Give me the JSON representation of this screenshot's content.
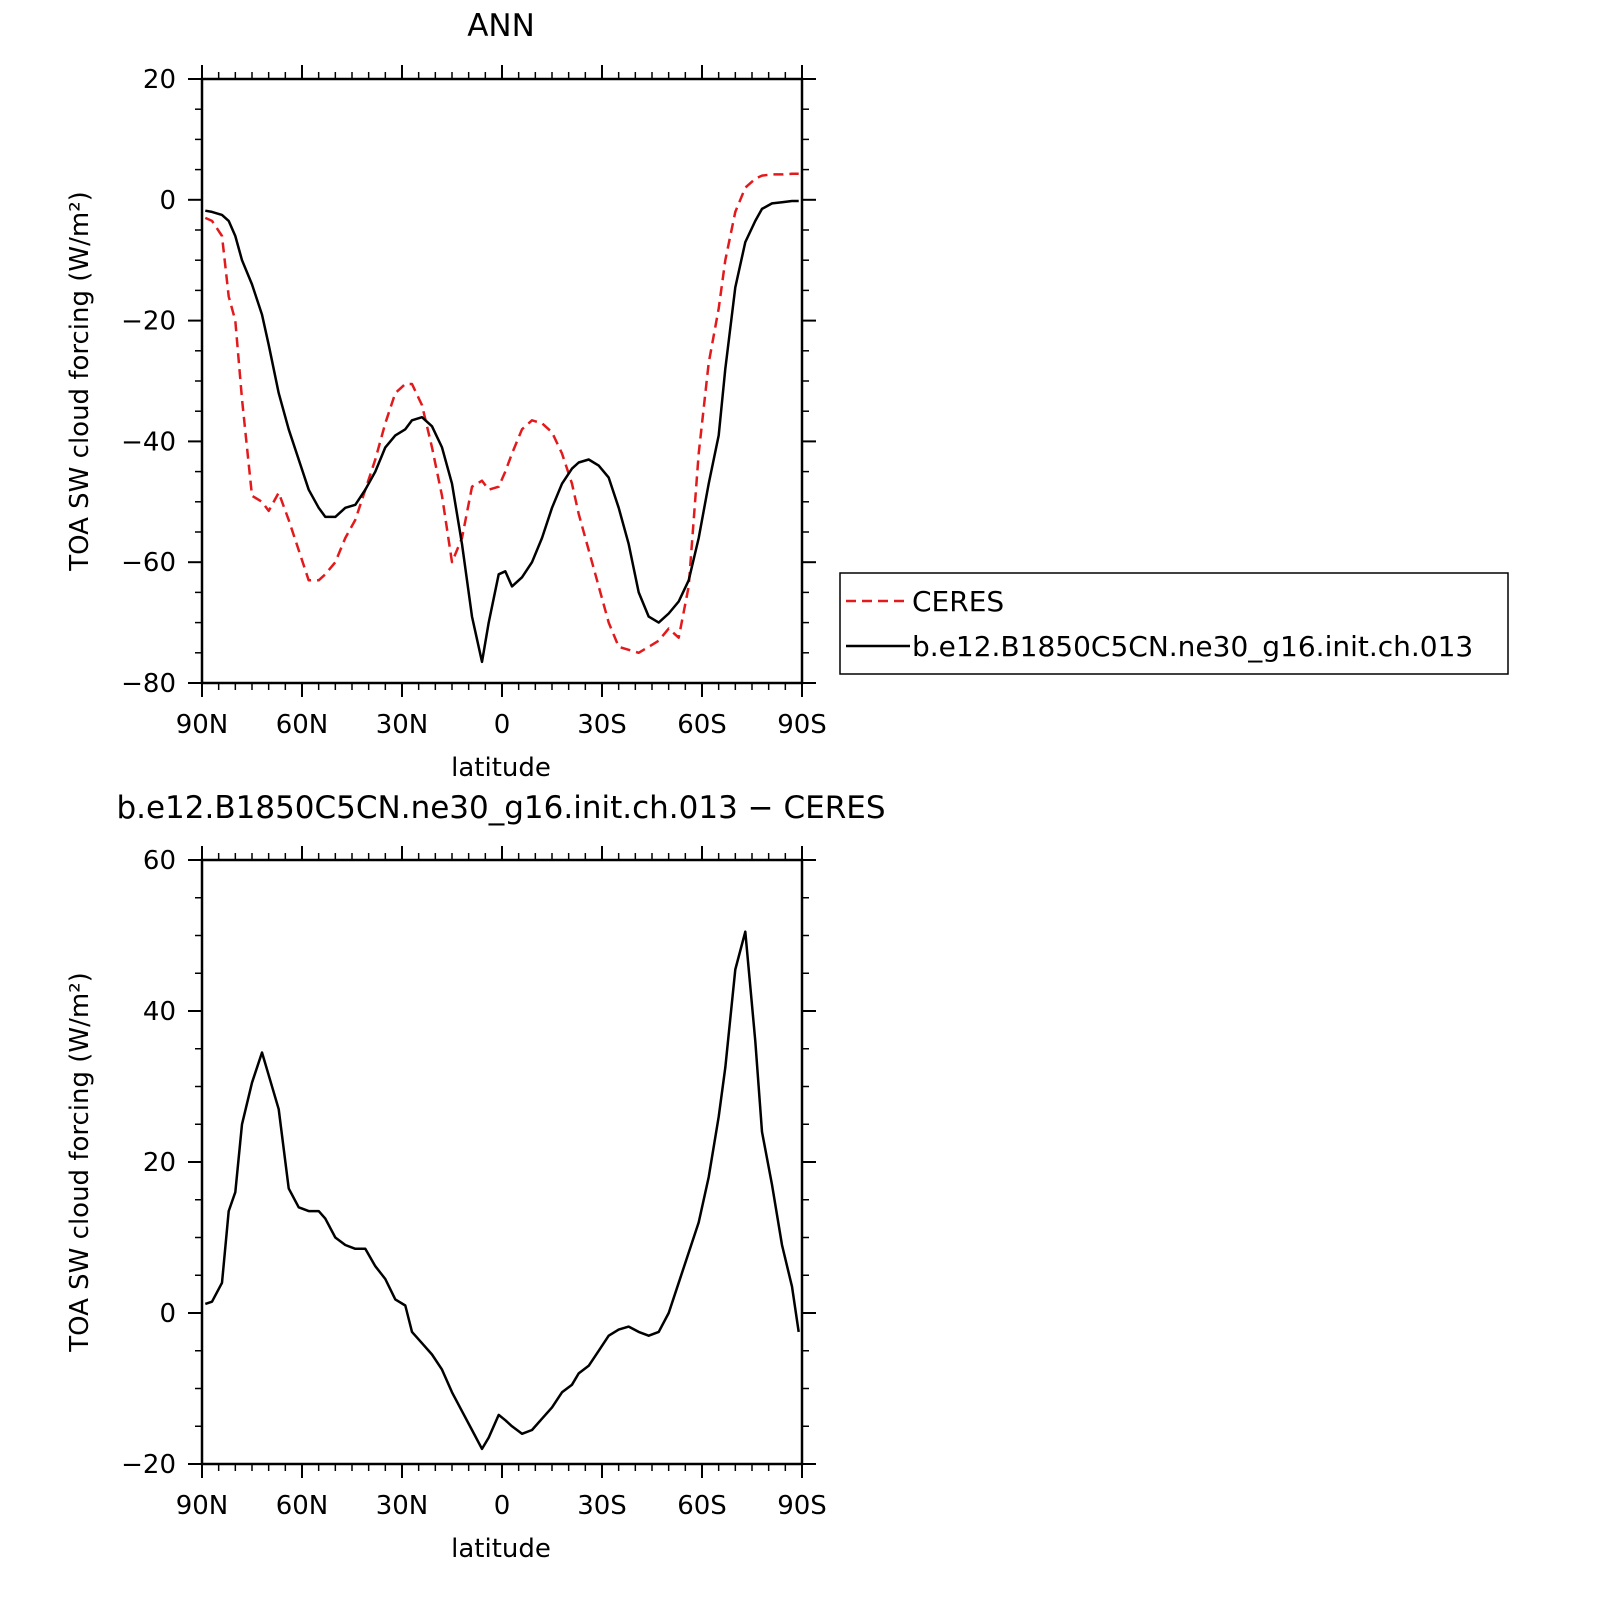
{
  "chart_data": [
    {
      "type": "line",
      "title": "ANN",
      "xlabel": "latitude",
      "ylabel": "TOA SW cloud forcing (W/m²)",
      "xlim": [
        90,
        -90
      ],
      "ylim": [
        -80,
        20
      ],
      "xticks": [
        90,
        60,
        30,
        0,
        -30,
        -60,
        -90
      ],
      "xtick_labels": [
        "90N",
        "60N",
        "30N",
        "0",
        "30S",
        "60S",
        "90S"
      ],
      "yticks": [
        20,
        0,
        -20,
        -40,
        -60,
        -80
      ],
      "ytick_labels": [
        "20",
        "0",
        "−20",
        "−40",
        "−60",
        "−80"
      ],
      "legend_position": "right",
      "x": [
        89,
        87,
        84,
        82,
        80,
        78,
        75,
        72,
        70,
        67,
        64,
        61,
        58,
        55,
        53,
        50,
        47,
        44,
        41,
        38,
        35,
        32,
        29,
        27,
        24,
        21,
        18,
        15,
        12,
        9,
        6,
        4,
        1,
        -1,
        -3,
        -6,
        -9,
        -12,
        -15,
        -18,
        -21,
        -23,
        -26,
        -29,
        -32,
        -35,
        -38,
        -41,
        -44,
        -47,
        -50,
        -53,
        -56,
        -59,
        -62,
        -65,
        -67,
        -70,
        -73,
        -76,
        -78,
        -81,
        -84,
        -87,
        -89
      ],
      "series": [
        {
          "name": "CERES",
          "color": "#e31a1c",
          "dash": true,
          "values": [
            -3,
            -3.5,
            -6,
            -16,
            -20,
            -33,
            -49,
            -50,
            -51.5,
            -48.5,
            -53,
            -58,
            -63,
            -63,
            -62,
            -60,
            -56,
            -53,
            -48,
            -43,
            -37,
            -32,
            -30.5,
            -30.5,
            -34,
            -41,
            -49,
            -60,
            -56,
            -47.5,
            -46.5,
            -48,
            -47.5,
            -45,
            -42,
            -38,
            -36.5,
            -37,
            -38.5,
            -42,
            -47,
            -52,
            -58,
            -64,
            -70,
            -74,
            -74.5,
            -75,
            -74,
            -73,
            -71,
            -72.5,
            -64,
            -42,
            -27,
            -18,
            -10,
            -2,
            2,
            3.5,
            4,
            4.2,
            4.2,
            4.3,
            4.3
          ]
        },
        {
          "name": "b.e12.B1850C5CN.ne30_g16.init.ch.013",
          "color": "#000000",
          "dash": false,
          "values": [
            -1.8,
            -2,
            -2.5,
            -3.5,
            -6,
            -10,
            -14,
            -19,
            -24,
            -32,
            -38,
            -43,
            -48,
            -51,
            -52.5,
            -52.5,
            -51,
            -50.5,
            -48,
            -45,
            -41,
            -39,
            -38,
            -36.5,
            -36,
            -37.5,
            -41,
            -47,
            -57,
            -69,
            -76.5,
            -70,
            -62,
            -61.5,
            -64,
            -62.5,
            -60,
            -56,
            -51,
            -47,
            -44.5,
            -43.5,
            -43,
            -44,
            -46,
            -51,
            -57,
            -65,
            -69,
            -70,
            -68.5,
            -66.5,
            -63,
            -56,
            -47,
            -39,
            -28,
            -14.5,
            -7,
            -3.5,
            -1.5,
            -0.6,
            -0.4,
            -0.2,
            -0.2
          ]
        }
      ]
    },
    {
      "type": "line",
      "title": "b.e12.B1850C5CN.ne30_g16.init.ch.013 − CERES",
      "xlabel": "latitude",
      "ylabel": "TOA SW cloud forcing (W/m²)",
      "xlim": [
        90,
        -90
      ],
      "ylim": [
        -20,
        60
      ],
      "xticks": [
        90,
        60,
        30,
        0,
        -30,
        -60,
        -90
      ],
      "xtick_labels": [
        "90N",
        "60N",
        "30N",
        "0",
        "30S",
        "60S",
        "90S"
      ],
      "yticks": [
        60,
        40,
        20,
        0,
        -20
      ],
      "ytick_labels": [
        "60",
        "40",
        "20",
        "0",
        "−20"
      ],
      "x": [
        89,
        87,
        84,
        82,
        80,
        78,
        75,
        72,
        70,
        67,
        64,
        61,
        58,
        55,
        53,
        50,
        47,
        44,
        41,
        38,
        35,
        32,
        29,
        27,
        24,
        21,
        18,
        15,
        12,
        9,
        6,
        4,
        1,
        -1,
        -3,
        -6,
        -9,
        -12,
        -15,
        -18,
        -21,
        -23,
        -26,
        -29,
        -32,
        -35,
        -38,
        -41,
        -44,
        -47,
        -50,
        -53,
        -56,
        -59,
        -62,
        -65,
        -67,
        -70,
        -73,
        -76,
        -78,
        -81,
        -84,
        -87,
        -89
      ],
      "series": [
        {
          "color": "#000000",
          "values": [
            1.2,
            1.5,
            4,
            13.5,
            16,
            25,
            30.5,
            34.5,
            31.5,
            27,
            16.5,
            14,
            13.5,
            13.5,
            12.5,
            10,
            9,
            8.5,
            8.5,
            6.2,
            4.5,
            1.8,
            1,
            -2.5,
            -4,
            -5.5,
            -7.5,
            -10.5,
            -13,
            -15.5,
            -18,
            -16.5,
            -13.5,
            -14.2,
            -15,
            -16,
            -15.5,
            -14,
            -12.5,
            -10.5,
            -9.5,
            -8,
            -7,
            -5,
            -3,
            -2.2,
            -1.8,
            -2.5,
            -3,
            -2.5,
            0,
            4,
            8,
            12,
            18,
            26,
            32.5,
            45.5,
            50.5,
            36,
            24,
            17,
            9,
            3.5,
            -2.5
          ]
        }
      ]
    }
  ],
  "legend": {
    "entries": [
      "CERES",
      "b.e12.B1850C5CN.ne30_g16.init.ch.013"
    ]
  }
}
